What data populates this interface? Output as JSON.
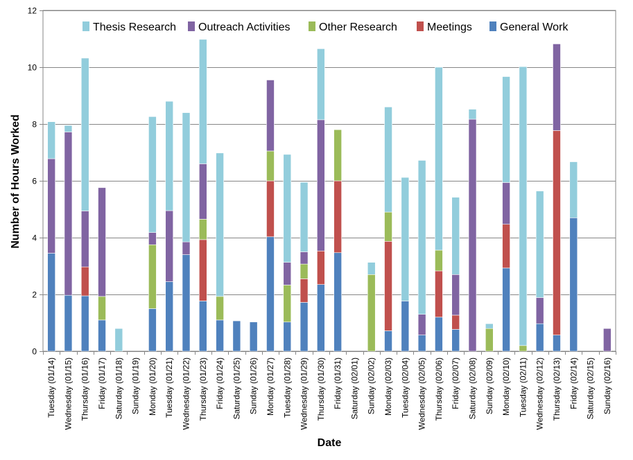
{
  "chart_data": {
    "type": "bar",
    "stacked": true,
    "xlabel": "Date",
    "ylabel": "Number of Hours Worked",
    "ylim": [
      0,
      12
    ],
    "yticks": [
      0,
      2,
      4,
      6,
      8,
      10,
      12
    ],
    "grid": "horizontal",
    "legend_position": "top",
    "categories": [
      "Tuesday (01/14)",
      "Wednesday (01/15)",
      "Thursday (01/16)",
      "Friday (01/17)",
      "Saturday (01/18)",
      "Sunday (01/19)",
      "Monday (01/20)",
      "Tuesday (01/21)",
      "Wednesday (01/22)",
      "Thursday (01/23)",
      "Friday (01/24)",
      "Saturday (01/25)",
      "Sunday (01/26)",
      "Monday (01/27)",
      "Tuesday (01/28)",
      "Wednesday (01/29)",
      "Thursday (01/30)",
      "Friday (01/31)",
      "Saturday (02/01)",
      "Sunday (02/02)",
      "Monday (02/03)",
      "Tuesday (02/04)",
      "Wednesday (02/05)",
      "Thursday (02/06)",
      "Friday (02/07)",
      "Saturday (02/08)",
      "Sunday (02/09)",
      "Monday (02/10)",
      "Tuesday (02/11)",
      "Wednesday (02/12)",
      "Thursday (02/13)",
      "Friday (02/14)",
      "Saturday (02/15)",
      "Sunday (02/16)"
    ],
    "series": [
      {
        "name": "General Work",
        "color": "#4F81BD",
        "values": [
          3.45,
          1.97,
          1.95,
          1.1,
          0,
          0,
          1.5,
          2.45,
          3.4,
          1.77,
          1.1,
          1.07,
          1.03,
          4.03,
          1.03,
          1.72,
          2.35,
          3.47,
          0,
          0,
          0.72,
          1.77,
          0.57,
          1.2,
          0.77,
          0,
          0,
          2.93,
          0,
          0.97,
          0.57,
          4.7,
          0,
          0
        ]
      },
      {
        "name": "Meetings",
        "color": "#C0504D",
        "values": [
          0,
          0,
          1.02,
          0,
          0,
          0,
          0,
          0,
          0,
          2.16,
          0,
          0,
          0,
          1.97,
          0,
          0.83,
          1.18,
          2.53,
          0,
          0,
          3.15,
          0,
          0,
          1.63,
          0.5,
          0,
          0,
          1.54,
          0,
          0,
          7.2,
          0,
          0,
          0
        ]
      },
      {
        "name": "Other Research",
        "color": "#9BBB59",
        "values": [
          0,
          0,
          0,
          0.83,
          0,
          0,
          2.25,
          0,
          0,
          0.72,
          0.83,
          0,
          0,
          1.05,
          1.3,
          0.52,
          0,
          1.8,
          0,
          2.7,
          1.03,
          0,
          0,
          0.73,
          0,
          0,
          0.8,
          0,
          0.2,
          0,
          0,
          0,
          0,
          0
        ]
      },
      {
        "name": "Outreach Activities",
        "color": "#8064A2",
        "values": [
          3.33,
          5.75,
          1.97,
          3.83,
          0,
          0,
          0.43,
          2.5,
          0.45,
          1.95,
          0,
          0,
          0,
          2.5,
          0.8,
          0.43,
          4.62,
          0,
          0,
          0,
          0,
          0,
          0.73,
          0,
          1.43,
          8.17,
          0,
          1.47,
          0,
          0.92,
          3.05,
          0,
          0,
          0.8
        ]
      },
      {
        "name": "Thesis Research",
        "color": "#92CDDC",
        "values": [
          1.3,
          0.23,
          5.38,
          0,
          0.8,
          0,
          4.08,
          3.85,
          4.55,
          4.38,
          5.05,
          0,
          0,
          0,
          3.8,
          2.45,
          2.5,
          0,
          0,
          0.43,
          3.7,
          4.35,
          5.42,
          6.44,
          2.72,
          0.35,
          0.17,
          3.73,
          9.82,
          3.75,
          0,
          1.97,
          0,
          0
        ]
      }
    ],
    "legend_order": [
      "Thesis Research",
      "Outreach Activities",
      "Other Research",
      "Meetings",
      "General Work"
    ]
  }
}
